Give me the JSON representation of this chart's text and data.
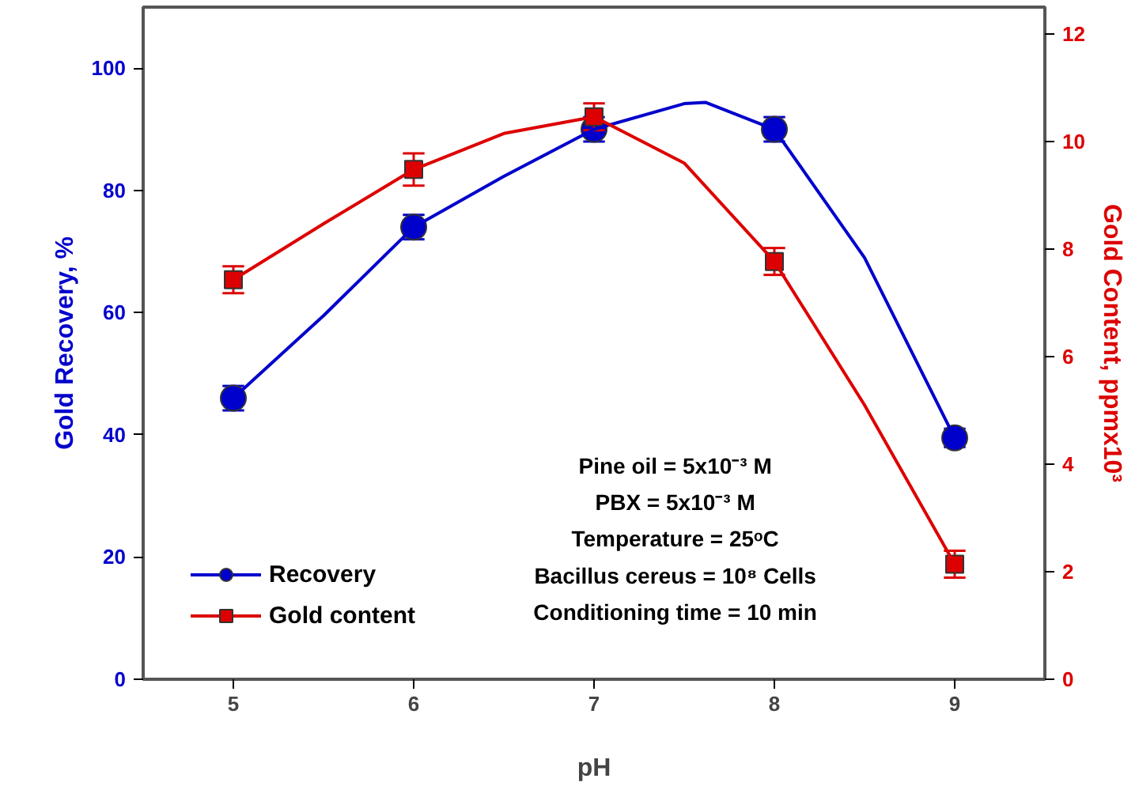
{
  "chart_data": {
    "type": "scatter",
    "xlabel": "pH",
    "ylabel": "Gold Recovery, %",
    "y2label": "Gold Content, ppmx10³",
    "x": [
      5,
      6,
      7,
      8,
      9
    ],
    "xlim": [
      4.5,
      9.5
    ],
    "xticks": [
      5,
      6,
      7,
      8,
      9
    ],
    "ylim": [
      0,
      110
    ],
    "yticks": [
      0,
      20,
      40,
      60,
      80,
      100
    ],
    "y2lim": [
      0,
      12.5
    ],
    "y2ticks": [
      0,
      2,
      4,
      6,
      8,
      10,
      12
    ],
    "grid": false,
    "legend": "bottom left",
    "annotations": [
      "Pine oil = 5x10⁻³ M",
      "PBX = 5x10⁻³ M",
      "Temperature = 25ᵒC",
      "Bacillus cereus = 10⁸ Cells",
      "Conditioning time = 10 min"
    ],
    "series": [
      {
        "name": "Recovery",
        "color": "#0000cc",
        "marker": "circle",
        "values": [
          46,
          74,
          90,
          90,
          39.5
        ],
        "errors": [
          2,
          2,
          2,
          2,
          1.5
        ]
      },
      {
        "name": "Gold content",
        "color": "#dd0000",
        "marker": "square",
        "axis": "y2",
        "values": [
          7.43,
          9.48,
          10.46,
          7.77,
          2.14
        ],
        "errors": [
          0.25,
          0.3,
          0.25,
          0.25,
          0.25
        ]
      },
      {
        "type": "line",
        "color": "#0000cc",
        "marker": "none",
        "x": [
          5,
          5.5,
          6,
          6.5,
          7,
          7.5,
          7.62,
          8,
          8.5,
          9
        ],
        "values": [
          46,
          59.5,
          74,
          82.3,
          90,
          94.2,
          94.4,
          90,
          69,
          39.5
        ]
      },
      {
        "type": "line",
        "color": "#dd0000",
        "marker": "none",
        "axis": "y2",
        "x": [
          5,
          5.5,
          6,
          6.5,
          7,
          7.5,
          8,
          8.5,
          9
        ],
        "values": [
          7.43,
          8.47,
          9.48,
          10.15,
          10.46,
          9.6,
          7.77,
          5.1,
          2.14
        ]
      }
    ]
  }
}
